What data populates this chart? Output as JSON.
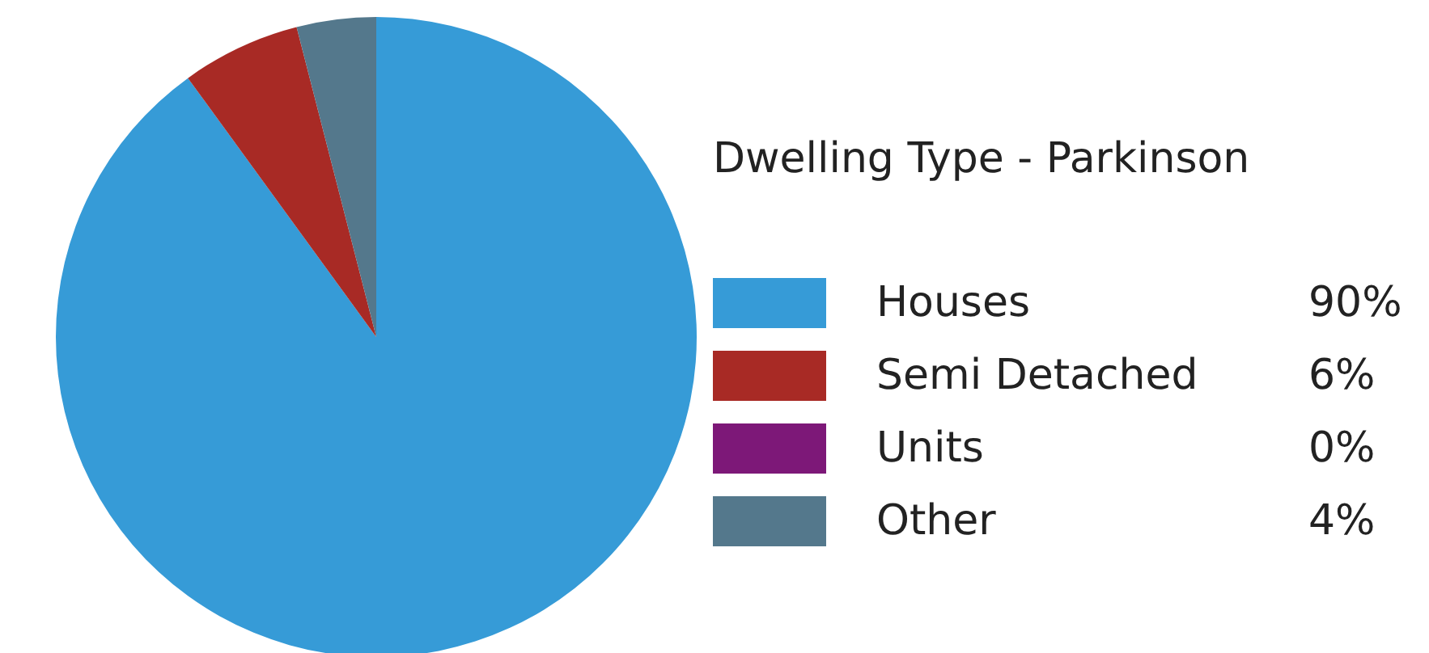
{
  "chart_data": {
    "type": "pie",
    "legend_title": "Dwelling Type - Parkinson",
    "categories": [
      "Houses",
      "Semi Detached",
      "Units",
      "Other"
    ],
    "values": [
      90,
      6,
      0,
      4
    ],
    "value_labels": [
      "90%",
      "6%",
      "0%",
      "4%"
    ],
    "colors": [
      "#369bd7",
      "#a82a25",
      "#7d1878",
      "#54788c"
    ],
    "legend": "right"
  }
}
